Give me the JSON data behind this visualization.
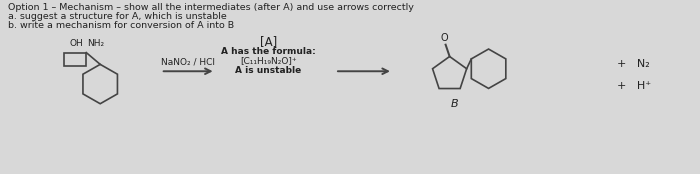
{
  "title_line1": "Option 1 – Mechanism – show all the intermediates (after A) and use arrows correctly",
  "title_line2": "a. suggest a structure for A, which is unstable",
  "title_line3": "b. write a mechanism for conversion of A into B",
  "reagent": "NaNO₂ / HCl",
  "intermediate": "[A]",
  "formula_line1": "A has the formula:",
  "formula_line2": "[C₁₁H₁₉N₂O]⁺",
  "formula_line3": "A is unstable",
  "label_B": "B",
  "plus_N2": "+   N₂",
  "plus_H": "+   H⁺",
  "bg_color": "#d8d8d8",
  "text_color": "#222222",
  "line_color": "#444444"
}
